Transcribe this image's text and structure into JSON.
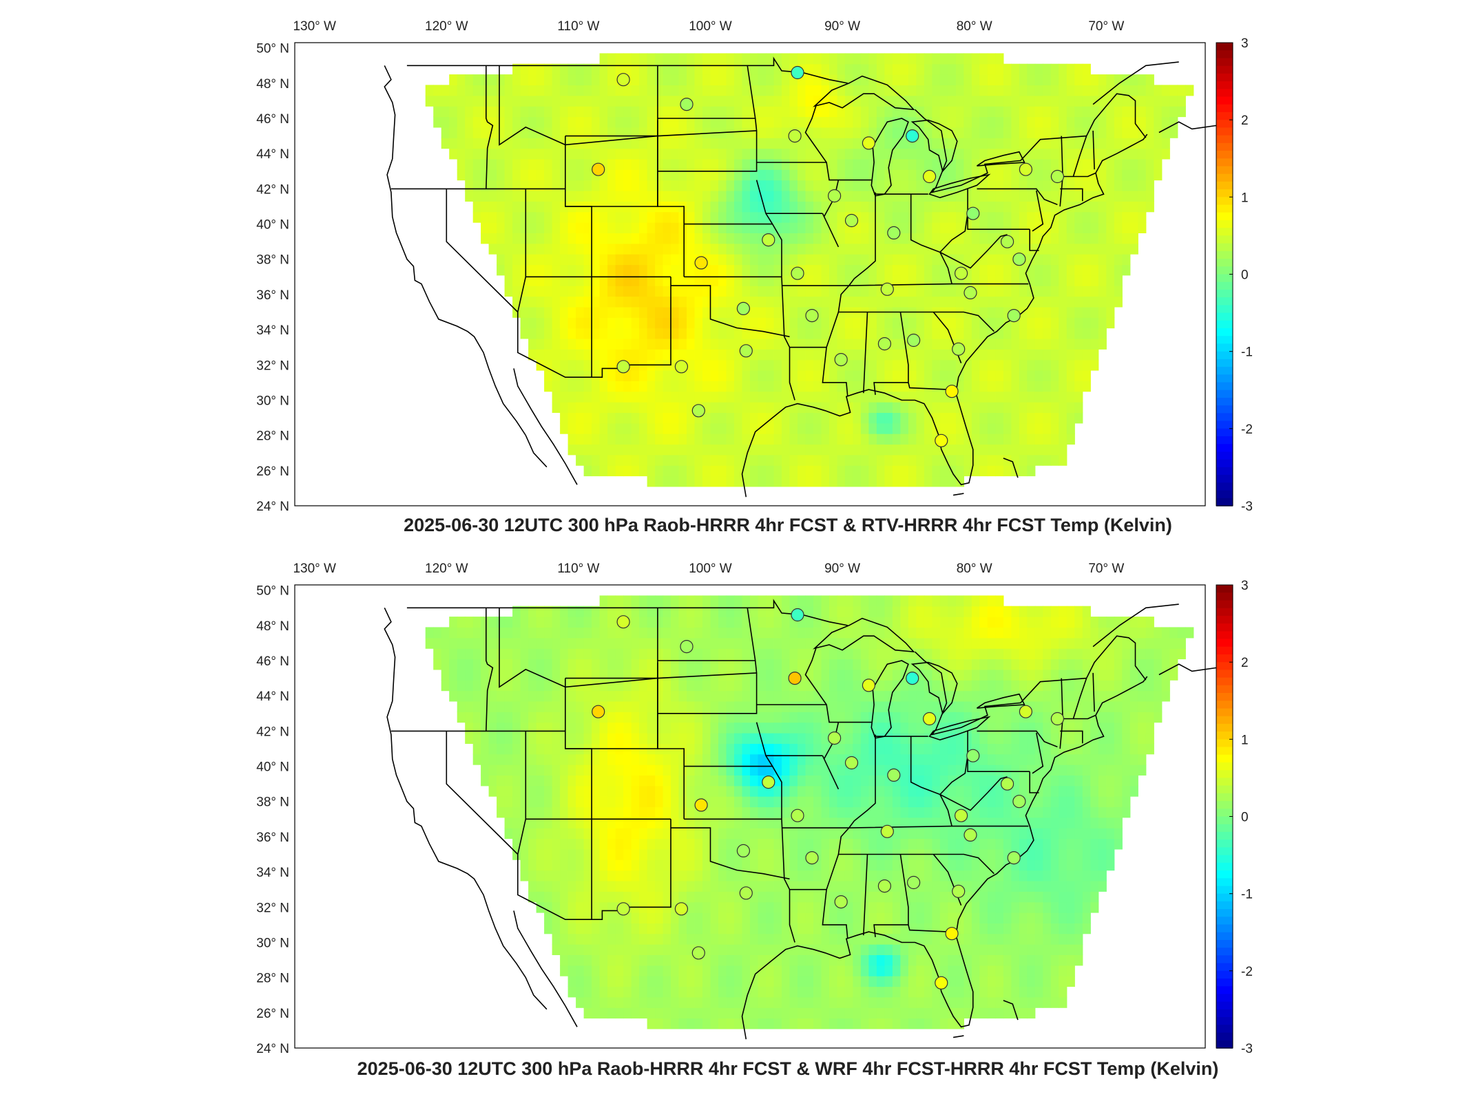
{
  "panels": [
    {
      "title": "2025-06-30 12UTC 300 hPa Raob-HRRR 4hr FCST & RTV-HRRR 4hr FCST Temp (Kelvin)",
      "field": "rtv",
      "stations": [
        {
          "lon": -106.6,
          "lat": 48.2,
          "d": 0.5
        },
        {
          "lon": -101.8,
          "lat": 46.8,
          "d": 0.2
        },
        {
          "lon": -93.4,
          "lat": 48.6,
          "d": -0.4
        },
        {
          "lon": -93.6,
          "lat": 45.0,
          "d": 0.4
        },
        {
          "lon": -88.0,
          "lat": 44.6,
          "d": 0.6
        },
        {
          "lon": -84.7,
          "lat": 45.0,
          "d": -0.5
        },
        {
          "lon": -108.5,
          "lat": 43.1,
          "d": 1.0
        },
        {
          "lon": -83.4,
          "lat": 42.7,
          "d": 0.6
        },
        {
          "lon": -76.1,
          "lat": 43.1,
          "d": 0.5
        },
        {
          "lon": -73.7,
          "lat": 42.7,
          "d": 0.3
        },
        {
          "lon": -90.6,
          "lat": 41.6,
          "d": 0.3
        },
        {
          "lon": -89.3,
          "lat": 40.2,
          "d": 0.3
        },
        {
          "lon": -86.1,
          "lat": 39.5,
          "d": 0.2
        },
        {
          "lon": -80.1,
          "lat": 40.6,
          "d": 0.1
        },
        {
          "lon": -95.6,
          "lat": 39.1,
          "d": 0.4
        },
        {
          "lon": -100.7,
          "lat": 37.8,
          "d": 0.9
        },
        {
          "lon": -93.4,
          "lat": 37.2,
          "d": 0.3
        },
        {
          "lon": -86.6,
          "lat": 36.3,
          "d": 0.4
        },
        {
          "lon": -80.3,
          "lat": 36.1,
          "d": 0.3
        },
        {
          "lon": -81.0,
          "lat": 37.2,
          "d": 0.4
        },
        {
          "lon": -97.5,
          "lat": 35.2,
          "d": 0.2
        },
        {
          "lon": -92.3,
          "lat": 34.8,
          "d": 0.3
        },
        {
          "lon": -77.0,
          "lat": 34.8,
          "d": 0.2
        },
        {
          "lon": -106.6,
          "lat": 31.9,
          "d": 0.4
        },
        {
          "lon": -102.2,
          "lat": 31.9,
          "d": 0.5
        },
        {
          "lon": -97.3,
          "lat": 32.8,
          "d": 0.3
        },
        {
          "lon": -90.1,
          "lat": 32.3,
          "d": 0.3
        },
        {
          "lon": -86.8,
          "lat": 33.2,
          "d": 0.3
        },
        {
          "lon": -84.6,
          "lat": 33.4,
          "d": 0.2
        },
        {
          "lon": -81.2,
          "lat": 32.9,
          "d": 0.3
        },
        {
          "lon": -100.9,
          "lat": 29.4,
          "d": 0.3
        },
        {
          "lon": -81.7,
          "lat": 30.5,
          "d": 0.8
        },
        {
          "lon": -82.5,
          "lat": 27.7,
          "d": 0.7
        },
        {
          "lon": -77.5,
          "lat": 39.0,
          "d": 0.3
        },
        {
          "lon": -76.6,
          "lat": 38.0,
          "d": 0.2
        }
      ]
    },
    {
      "title": "2025-06-30 12UTC 300 hPa Raob-HRRR 4hr FCST & WRF 4hr FCST-HRRR 4hr FCST Temp (Kelvin)",
      "field": "wrf",
      "stations": [
        {
          "lon": -106.6,
          "lat": 48.2,
          "d": 0.5
        },
        {
          "lon": -101.8,
          "lat": 46.8,
          "d": 0.2
        },
        {
          "lon": -93.4,
          "lat": 48.6,
          "d": -0.4
        },
        {
          "lon": -93.6,
          "lat": 45.0,
          "d": 1.1
        },
        {
          "lon": -88.0,
          "lat": 44.6,
          "d": 0.6
        },
        {
          "lon": -84.7,
          "lat": 45.0,
          "d": -0.5
        },
        {
          "lon": -108.5,
          "lat": 43.1,
          "d": 1.0
        },
        {
          "lon": -83.4,
          "lat": 42.7,
          "d": 0.6
        },
        {
          "lon": -76.1,
          "lat": 43.1,
          "d": 0.5
        },
        {
          "lon": -73.7,
          "lat": 42.7,
          "d": 0.3
        },
        {
          "lon": -90.6,
          "lat": 41.6,
          "d": 0.3
        },
        {
          "lon": -89.3,
          "lat": 40.2,
          "d": 0.3
        },
        {
          "lon": -86.1,
          "lat": 39.5,
          "d": 0.2
        },
        {
          "lon": -80.1,
          "lat": 40.6,
          "d": 0.1
        },
        {
          "lon": -95.6,
          "lat": 39.1,
          "d": 0.4
        },
        {
          "lon": -100.7,
          "lat": 37.8,
          "d": 0.9
        },
        {
          "lon": -93.4,
          "lat": 37.2,
          "d": 0.3
        },
        {
          "lon": -86.6,
          "lat": 36.3,
          "d": 0.4
        },
        {
          "lon": -80.3,
          "lat": 36.1,
          "d": 0.3
        },
        {
          "lon": -81.0,
          "lat": 37.2,
          "d": 0.4
        },
        {
          "lon": -97.5,
          "lat": 35.2,
          "d": 0.2
        },
        {
          "lon": -92.3,
          "lat": 34.8,
          "d": 0.3
        },
        {
          "lon": -77.0,
          "lat": 34.8,
          "d": 0.2
        },
        {
          "lon": -106.6,
          "lat": 31.9,
          "d": 0.4
        },
        {
          "lon": -102.2,
          "lat": 31.9,
          "d": 0.5
        },
        {
          "lon": -97.3,
          "lat": 32.8,
          "d": 0.3
        },
        {
          "lon": -90.1,
          "lat": 32.3,
          "d": 0.3
        },
        {
          "lon": -86.8,
          "lat": 33.2,
          "d": 0.3
        },
        {
          "lon": -84.6,
          "lat": 33.4,
          "d": 0.2
        },
        {
          "lon": -81.2,
          "lat": 32.9,
          "d": 0.3
        },
        {
          "lon": -100.9,
          "lat": 29.4,
          "d": 0.3
        },
        {
          "lon": -81.7,
          "lat": 30.5,
          "d": 0.8
        },
        {
          "lon": -82.5,
          "lat": 27.7,
          "d": 0.7
        },
        {
          "lon": -77.5,
          "lat": 39.0,
          "d": 0.3
        },
        {
          "lon": -76.6,
          "lat": 38.0,
          "d": 0.2
        }
      ]
    }
  ],
  "lon_ticks": [
    {
      "lon": -130,
      "label": "130° W"
    },
    {
      "lon": -120,
      "label": "120° W"
    },
    {
      "lon": -110,
      "label": "110° W"
    },
    {
      "lon": -100,
      "label": "100° W"
    },
    {
      "lon": -90,
      "label": "90° W"
    },
    {
      "lon": -80,
      "label": "80° W"
    },
    {
      "lon": -70,
      "label": "70° W"
    }
  ],
  "lat_ticks": [
    {
      "lat": 50,
      "label": "50° N"
    },
    {
      "lat": 48,
      "label": "48° N"
    },
    {
      "lat": 46,
      "label": "46° N"
    },
    {
      "lat": 44,
      "label": "44° N"
    },
    {
      "lat": 42,
      "label": "42° N"
    },
    {
      "lat": 40,
      "label": "40° N"
    },
    {
      "lat": 38,
      "label": "38° N"
    },
    {
      "lat": 36,
      "label": "36° N"
    },
    {
      "lat": 34,
      "label": "34° N"
    },
    {
      "lat": 32,
      "label": "32° N"
    },
    {
      "lat": 30,
      "label": "30° N"
    },
    {
      "lat": 28,
      "label": "28° N"
    },
    {
      "lat": 26,
      "label": "26° N"
    },
    {
      "lat": 24,
      "label": "24° N"
    }
  ],
  "colorbar": {
    "min": -3,
    "max": 3,
    "ticks": [
      "3",
      "2",
      "1",
      "0",
      "-1",
      "-2",
      "-3"
    ],
    "colormap": "jet"
  },
  "colors": {
    "coast": "#000000",
    "station_edge": "#333333",
    "frame": "#000000"
  }
}
